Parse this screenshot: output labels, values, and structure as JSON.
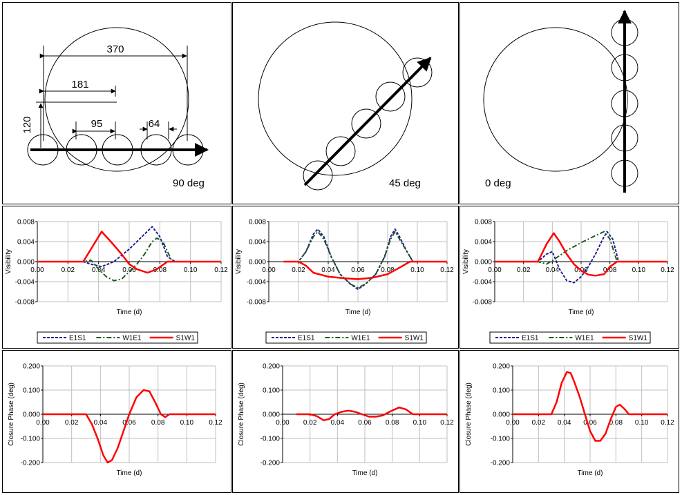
{
  "geometry_panels": [
    {
      "label": "90 deg",
      "dimensions": {
        "d370": "370",
        "d181": "181",
        "d95": "95",
        "d64": "64",
        "d120": "120"
      }
    },
    {
      "label": "45 deg"
    },
    {
      "label": "0 deg"
    }
  ],
  "colors": {
    "E1S1": "#1f1f8f",
    "W1E1": "#1e5a1e",
    "S1W1": "#ff0000",
    "grid": "#bfbfbf"
  },
  "chart_data": [
    {
      "type": "line",
      "panel": "visibility-90deg",
      "xlabel": "Time (d)",
      "ylabel": "Visibility",
      "xlim": [
        0,
        0.12
      ],
      "ylim": [
        -0.008,
        0.008
      ],
      "x_ticks": [
        "0.00",
        "0.02",
        "0.04",
        "0.06",
        "0.08",
        "0.10",
        "0.12"
      ],
      "y_ticks": [
        "0.008",
        "0.004",
        "0.000",
        "-0.004",
        "-0.008"
      ],
      "legend": "bottom",
      "series": [
        {
          "name": "E1S1",
          "style": "dashed",
          "points": [
            [
              0,
              0
            ],
            [
              0.03,
              0
            ],
            [
              0.035,
              -0.0005
            ],
            [
              0.042,
              -0.001
            ],
            [
              0.05,
              0
            ],
            [
              0.06,
              0.0025
            ],
            [
              0.07,
              0.0055
            ],
            [
              0.075,
              0.007
            ],
            [
              0.08,
              0.005
            ],
            [
              0.085,
              0.001
            ],
            [
              0.09,
              0
            ],
            [
              0.12,
              0
            ]
          ]
        },
        {
          "name": "W1E1",
          "style": "dashdot",
          "points": [
            [
              0,
              0
            ],
            [
              0.03,
              0
            ],
            [
              0.035,
              0.0003
            ],
            [
              0.04,
              -0.0015
            ],
            [
              0.045,
              -0.003
            ],
            [
              0.05,
              -0.0038
            ],
            [
              0.055,
              -0.0035
            ],
            [
              0.06,
              -0.002
            ],
            [
              0.065,
              -0.0005
            ],
            [
              0.07,
              0.0015
            ],
            [
              0.075,
              0.004
            ],
            [
              0.078,
              0.0047
            ],
            [
              0.082,
              0.004
            ],
            [
              0.088,
              0
            ],
            [
              0.12,
              0
            ]
          ]
        },
        {
          "name": "S1W1",
          "style": "solid",
          "points": [
            [
              0,
              0
            ],
            [
              0.03,
              0
            ],
            [
              0.035,
              0.0025
            ],
            [
              0.042,
              0.006
            ],
            [
              0.048,
              0.004
            ],
            [
              0.055,
              0.0015
            ],
            [
              0.06,
              -0.0005
            ],
            [
              0.065,
              -0.0015
            ],
            [
              0.072,
              -0.0022
            ],
            [
              0.078,
              -0.0015
            ],
            [
              0.085,
              0
            ],
            [
              0.12,
              0
            ]
          ]
        }
      ]
    },
    {
      "type": "line",
      "panel": "visibility-45deg",
      "xlabel": "Time (d)",
      "ylabel": "Visibility",
      "xlim": [
        0,
        0.12
      ],
      "ylim": [
        -0.008,
        0.008
      ],
      "x_ticks": [
        "0.00",
        "0.02",
        "0.04",
        "0.06",
        "0.08",
        "0.10",
        "0.12"
      ],
      "y_ticks": [
        "0.008",
        "0.004",
        "0.000",
        "-0.004",
        "-0.008"
      ],
      "legend": "bottom",
      "series": [
        {
          "name": "E1S1",
          "style": "dashed",
          "points": [
            [
              0.01,
              0
            ],
            [
              0.02,
              0
            ],
            [
              0.025,
              0.002
            ],
            [
              0.03,
              0.0055
            ],
            [
              0.033,
              0.0065
            ],
            [
              0.037,
              0.005
            ],
            [
              0.042,
              0.001
            ],
            [
              0.048,
              -0.0025
            ],
            [
              0.055,
              -0.0045
            ],
            [
              0.06,
              -0.0055
            ],
            [
              0.065,
              -0.0045
            ],
            [
              0.072,
              -0.0025
            ],
            [
              0.078,
              0.001
            ],
            [
              0.082,
              0.005
            ],
            [
              0.085,
              0.0065
            ],
            [
              0.088,
              0.005
            ],
            [
              0.093,
              0.002
            ],
            [
              0.097,
              0
            ],
            [
              0.12,
              0
            ]
          ]
        },
        {
          "name": "W1E1",
          "style": "dashdot",
          "points": [
            [
              0.01,
              0
            ],
            [
              0.02,
              0
            ],
            [
              0.025,
              0.002
            ],
            [
              0.03,
              0.005
            ],
            [
              0.033,
              0.006
            ],
            [
              0.037,
              0.0045
            ],
            [
              0.042,
              0.001
            ],
            [
              0.048,
              -0.0025
            ],
            [
              0.055,
              -0.0045
            ],
            [
              0.06,
              -0.0052
            ],
            [
              0.065,
              -0.0045
            ],
            [
              0.072,
              -0.0025
            ],
            [
              0.078,
              0.001
            ],
            [
              0.082,
              0.0045
            ],
            [
              0.085,
              0.006
            ],
            [
              0.088,
              0.0045
            ],
            [
              0.093,
              0.002
            ],
            [
              0.097,
              0
            ],
            [
              0.12,
              0
            ]
          ]
        },
        {
          "name": "S1W1",
          "style": "solid",
          "points": [
            [
              0.01,
              0
            ],
            [
              0.02,
              0
            ],
            [
              0.025,
              -0.0008
            ],
            [
              0.03,
              -0.0022
            ],
            [
              0.04,
              -0.003
            ],
            [
              0.05,
              -0.0033
            ],
            [
              0.06,
              -0.0035
            ],
            [
              0.07,
              -0.0032
            ],
            [
              0.08,
              -0.0025
            ],
            [
              0.088,
              -0.0012
            ],
            [
              0.095,
              0
            ],
            [
              0.12,
              0
            ]
          ]
        }
      ]
    },
    {
      "type": "line",
      "panel": "visibility-0deg",
      "xlabel": "Time (d)",
      "ylabel": "Visibility",
      "xlim": [
        0,
        0.12
      ],
      "ylim": [
        -0.008,
        0.008
      ],
      "x_ticks": [
        "0.00",
        "0.02",
        "0.04",
        "0.06",
        "0.08",
        "0.10",
        "0.12"
      ],
      "y_ticks": [
        "0.008",
        "0.004",
        "0.000",
        "-0.004",
        "-0.008"
      ],
      "legend": "bottom",
      "series": [
        {
          "name": "E1S1",
          "style": "dashed",
          "points": [
            [
              0,
              0
            ],
            [
              0.03,
              0
            ],
            [
              0.036,
              0.0015
            ],
            [
              0.04,
              0.002
            ],
            [
              0.045,
              -0.0015
            ],
            [
              0.05,
              -0.0038
            ],
            [
              0.055,
              -0.0042
            ],
            [
              0.06,
              -0.003
            ],
            [
              0.065,
              -0.001
            ],
            [
              0.07,
              0.0015
            ],
            [
              0.075,
              0.0045
            ],
            [
              0.078,
              0.006
            ],
            [
              0.082,
              0.0045
            ],
            [
              0.086,
              0
            ],
            [
              0.12,
              0
            ]
          ]
        },
        {
          "name": "W1E1",
          "style": "dashdot",
          "points": [
            [
              0,
              0
            ],
            [
              0.03,
              0
            ],
            [
              0.036,
              -0.0005
            ],
            [
              0.04,
              0.0002
            ],
            [
              0.045,
              0.0012
            ],
            [
              0.05,
              0.0022
            ],
            [
              0.055,
              0.003
            ],
            [
              0.06,
              0.0038
            ],
            [
              0.065,
              0.0045
            ],
            [
              0.07,
              0.0052
            ],
            [
              0.076,
              0.006
            ],
            [
              0.08,
              0.0045
            ],
            [
              0.085,
              0
            ],
            [
              0.12,
              0
            ]
          ]
        },
        {
          "name": "S1W1",
          "style": "solid",
          "points": [
            [
              0,
              0
            ],
            [
              0.03,
              0
            ],
            [
              0.036,
              0.0035
            ],
            [
              0.041,
              0.0057
            ],
            [
              0.045,
              0.004
            ],
            [
              0.05,
              0.0015
            ],
            [
              0.055,
              -0.0005
            ],
            [
              0.06,
              -0.0018
            ],
            [
              0.065,
              -0.0026
            ],
            [
              0.07,
              -0.0028
            ],
            [
              0.076,
              -0.0025
            ],
            [
              0.08,
              -0.001
            ],
            [
              0.085,
              0
            ],
            [
              0.12,
              0
            ]
          ]
        }
      ]
    },
    {
      "type": "line",
      "panel": "closure-90deg",
      "xlabel": "Time (d)",
      "ylabel": "Closure Phase (deg)",
      "xlim": [
        0,
        0.12
      ],
      "ylim": [
        -0.2,
        0.2
      ],
      "x_ticks": [
        "0.00",
        "0.02",
        "0.04",
        "0.06",
        "0.08",
        "0.10",
        "0.12"
      ],
      "y_ticks": [
        "0.200",
        "0.100",
        "0.000",
        "-0.100",
        "-0.200"
      ],
      "series": [
        {
          "style": "solid",
          "points": [
            [
              0,
              0
            ],
            [
              0.03,
              0
            ],
            [
              0.034,
              -0.04
            ],
            [
              0.038,
              -0.1
            ],
            [
              0.042,
              -0.17
            ],
            [
              0.045,
              -0.2
            ],
            [
              0.048,
              -0.19
            ],
            [
              0.052,
              -0.14
            ],
            [
              0.056,
              -0.07
            ],
            [
              0.06,
              0
            ],
            [
              0.065,
              0.07
            ],
            [
              0.07,
              0.1
            ],
            [
              0.074,
              0.095
            ],
            [
              0.078,
              0.05
            ],
            [
              0.082,
              0
            ],
            [
              0.085,
              -0.012
            ],
            [
              0.088,
              0
            ],
            [
              0.12,
              0
            ]
          ]
        }
      ]
    },
    {
      "type": "line",
      "panel": "closure-45deg",
      "xlabel": "Time (d)",
      "ylabel": "Closure Phase (deg)",
      "xlim": [
        0,
        0.12
      ],
      "ylim": [
        -0.2,
        0.2
      ],
      "x_ticks": [
        "0.00",
        "0.02",
        "0.04",
        "0.06",
        "0.08",
        "0.10",
        "0.12"
      ],
      "y_ticks": [
        "0.200",
        "0.100",
        "0.000",
        "-0.100",
        "-0.200"
      ],
      "series": [
        {
          "style": "solid",
          "points": [
            [
              0.01,
              0
            ],
            [
              0.02,
              0
            ],
            [
              0.025,
              -0.008
            ],
            [
              0.03,
              -0.025
            ],
            [
              0.034,
              -0.02
            ],
            [
              0.038,
              0
            ],
            [
              0.043,
              0.01
            ],
            [
              0.048,
              0.015
            ],
            [
              0.053,
              0.01
            ],
            [
              0.058,
              0
            ],
            [
              0.063,
              -0.01
            ],
            [
              0.068,
              -0.01
            ],
            [
              0.073,
              -0.005
            ],
            [
              0.078,
              0.01
            ],
            [
              0.085,
              0.028
            ],
            [
              0.09,
              0.02
            ],
            [
              0.095,
              0
            ],
            [
              0.12,
              0
            ]
          ]
        }
      ]
    },
    {
      "type": "line",
      "panel": "closure-0deg",
      "xlabel": "Time (d)",
      "ylabel": "Closure Phase (deg)",
      "xlim": [
        0,
        0.12
      ],
      "ylim": [
        -0.2,
        0.2
      ],
      "x_ticks": [
        "0.00",
        "0.02",
        "0.04",
        "0.06",
        "0.08",
        "0.10",
        "0.12"
      ],
      "y_ticks": [
        "0.200",
        "0.100",
        "0.000",
        "-0.100",
        "-0.200"
      ],
      "series": [
        {
          "style": "solid",
          "points": [
            [
              0,
              0
            ],
            [
              0.03,
              0
            ],
            [
              0.034,
              0.05
            ],
            [
              0.038,
              0.13
            ],
            [
              0.042,
              0.175
            ],
            [
              0.045,
              0.17
            ],
            [
              0.048,
              0.13
            ],
            [
              0.052,
              0.07
            ],
            [
              0.056,
              0
            ],
            [
              0.06,
              -0.07
            ],
            [
              0.064,
              -0.11
            ],
            [
              0.068,
              -0.11
            ],
            [
              0.072,
              -0.08
            ],
            [
              0.076,
              -0.02
            ],
            [
              0.08,
              0.03
            ],
            [
              0.083,
              0.04
            ],
            [
              0.087,
              0.02
            ],
            [
              0.09,
              0
            ],
            [
              0.12,
              0
            ]
          ]
        }
      ]
    }
  ]
}
